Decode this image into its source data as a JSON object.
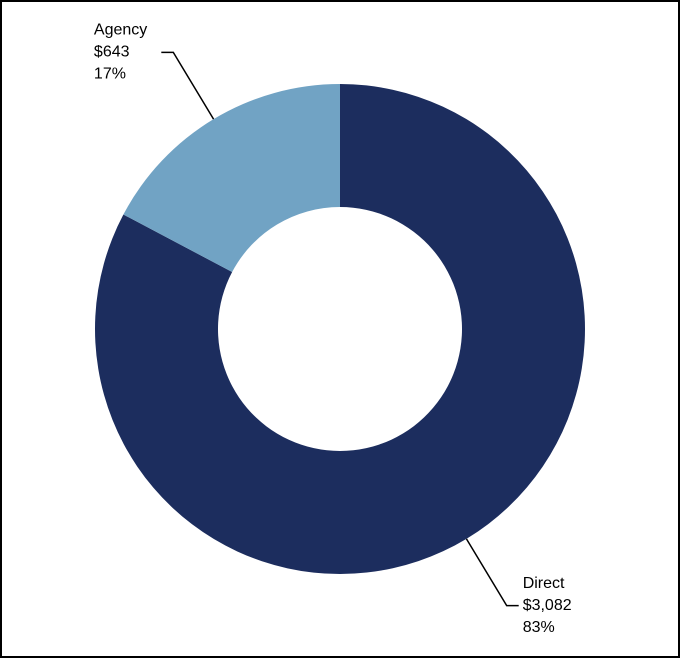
{
  "chart_data": {
    "type": "donut",
    "categories": [
      "Direct",
      "Agency"
    ],
    "values": [
      3082,
      643
    ],
    "value_labels": [
      "$3,082",
      "$643"
    ],
    "percents": [
      83,
      17
    ],
    "percent_labels": [
      "83%",
      "17%"
    ],
    "colors": [
      "#1c2d5e",
      "#71a3c4"
    ]
  }
}
